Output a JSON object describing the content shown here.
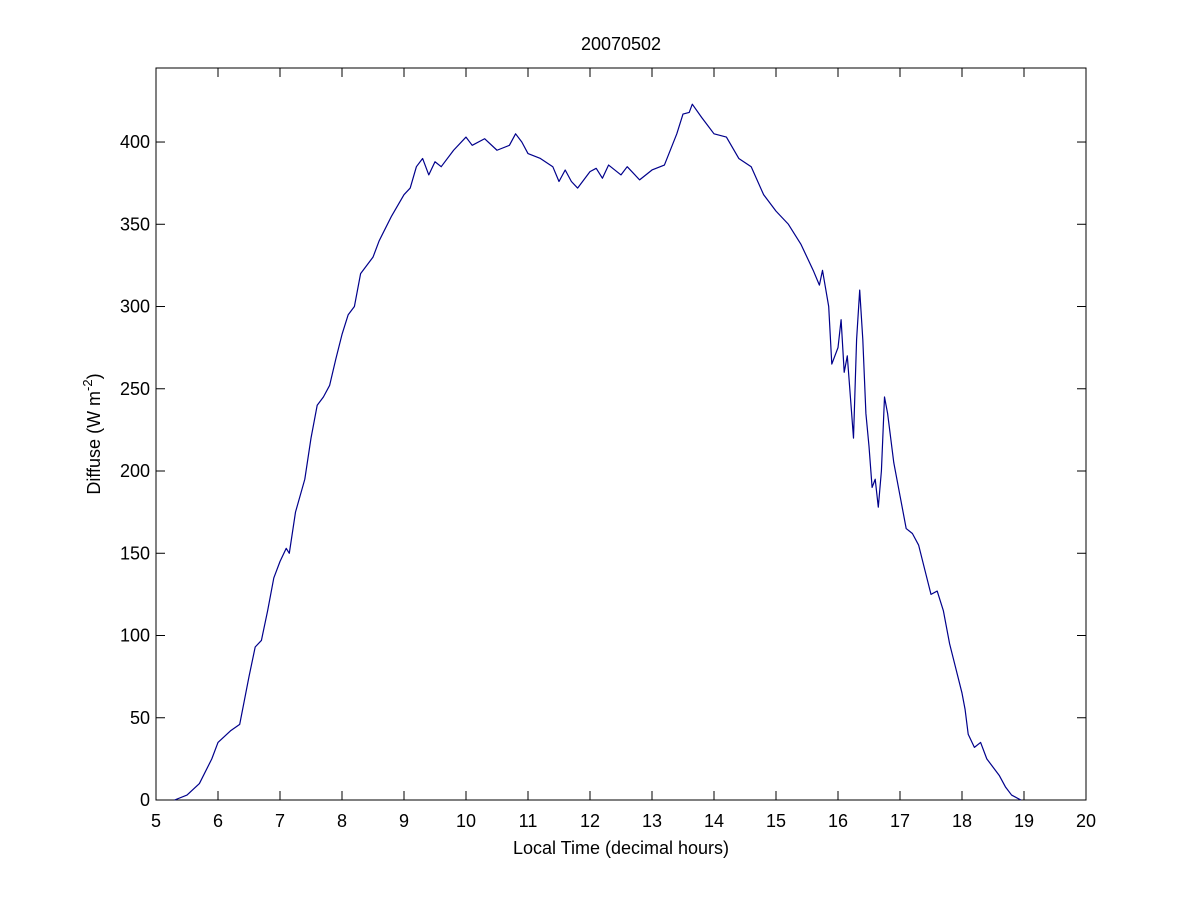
{
  "chart_data": {
    "type": "line",
    "title": "20070502",
    "x_label": "Local Time (decimal hours)",
    "y_label": {
      "text": "Diffuse (W m",
      "superscript": "-2",
      "suffix": ")"
    },
    "xlim": [
      5,
      20
    ],
    "xticks": [
      5,
      6,
      7,
      8,
      9,
      10,
      11,
      12,
      13,
      14,
      15,
      16,
      17,
      18,
      19,
      20
    ],
    "ylim": [
      0,
      445
    ],
    "yticks": [
      0,
      50,
      100,
      150,
      200,
      250,
      300,
      350,
      400
    ],
    "series": [
      {
        "color": "#00008b",
        "x": [
          5.3,
          5.5,
          5.7,
          5.9,
          6.0,
          6.2,
          6.35,
          6.5,
          6.6,
          6.7,
          6.8,
          6.9,
          7.0,
          7.1,
          7.15,
          7.25,
          7.4,
          7.5,
          7.6,
          7.7,
          7.8,
          7.9,
          8.0,
          8.1,
          8.2,
          8.3,
          8.5,
          8.6,
          8.8,
          9.0,
          9.1,
          9.2,
          9.3,
          9.4,
          9.5,
          9.6,
          9.8,
          10.0,
          10.1,
          10.3,
          10.5,
          10.7,
          10.8,
          10.9,
          11.0,
          11.2,
          11.4,
          11.5,
          11.6,
          11.7,
          11.8,
          12.0,
          12.1,
          12.2,
          12.3,
          12.5,
          12.6,
          12.8,
          13.0,
          13.2,
          13.4,
          13.5,
          13.6,
          13.65,
          13.8,
          14.0,
          14.2,
          14.4,
          14.6,
          14.8,
          15.0,
          15.2,
          15.4,
          15.6,
          15.7,
          15.75,
          15.85,
          15.9,
          16.0,
          16.05,
          16.1,
          16.15,
          16.2,
          16.25,
          16.3,
          16.35,
          16.4,
          16.45,
          16.5,
          16.55,
          16.6,
          16.65,
          16.7,
          16.75,
          16.8,
          16.9,
          17.0,
          17.1,
          17.2,
          17.3,
          17.4,
          17.5,
          17.6,
          17.7,
          17.8,
          17.9,
          18.0,
          18.05,
          18.1,
          18.2,
          18.3,
          18.4,
          18.5,
          18.6,
          18.7,
          18.8,
          18.95
        ],
        "values": [
          0,
          3,
          10,
          25,
          35,
          42,
          46,
          75,
          93,
          97,
          115,
          135,
          145,
          153,
          150,
          175,
          195,
          220,
          240,
          245,
          252,
          268,
          283,
          295,
          300,
          320,
          330,
          340,
          355,
          368,
          372,
          385,
          390,
          380,
          388,
          385,
          395,
          403,
          398,
          402,
          395,
          398,
          405,
          400,
          393,
          390,
          385,
          376,
          383,
          376,
          372,
          382,
          384,
          378,
          386,
          380,
          385,
          377,
          383,
          386,
          405,
          417,
          418,
          423,
          415,
          405,
          403,
          390,
          385,
          368,
          358,
          350,
          338,
          322,
          313,
          322,
          300,
          265,
          275,
          292,
          260,
          270,
          245,
          220,
          280,
          310,
          280,
          235,
          215,
          190,
          195,
          178,
          200,
          245,
          235,
          205,
          185,
          165,
          162,
          155,
          140,
          125,
          127,
          115,
          95,
          80,
          65,
          55,
          40,
          32,
          35,
          25,
          20,
          15,
          8,
          3,
          0
        ]
      }
    ]
  }
}
